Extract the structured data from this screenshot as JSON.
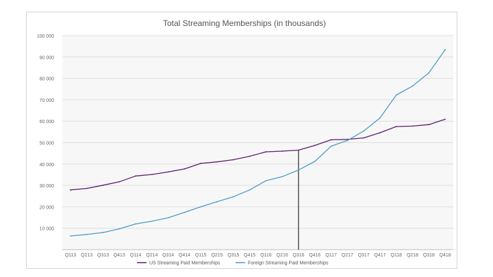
{
  "chart_data": {
    "type": "line",
    "title": "Total Streaming Memberships (in thousands)",
    "xlabel": "",
    "ylabel": "",
    "ylim": [
      0,
      100000
    ],
    "yticks": [
      10000,
      20000,
      30000,
      40000,
      50000,
      60000,
      70000,
      80000,
      90000,
      100000
    ],
    "ytick_labels": [
      "10 000",
      "20 000",
      "30 000",
      "40 000",
      "50 000",
      "60 000",
      "70 000",
      "80 000",
      "90 000",
      "100 000"
    ],
    "categories": [
      "Q113",
      "Q213",
      "Q313",
      "Q413",
      "Q114",
      "Q214",
      "Q314",
      "Q414",
      "Q115",
      "Q215",
      "Q315",
      "Q415",
      "Q116",
      "Q216",
      "Q316",
      "Q416",
      "Q117",
      "Q217",
      "Q317",
      "Q417",
      "Q118",
      "Q218",
      "Q318",
      "Q418"
    ],
    "series": [
      {
        "name": "US Streaming Paid Memberships",
        "color": "#5b1e6e",
        "values": [
          27900,
          28600,
          30100,
          31700,
          34400,
          35100,
          36300,
          37700,
          40300,
          41000,
          42000,
          43600,
          45700,
          46000,
          46500,
          48700,
          51300,
          51500,
          52200,
          54600,
          57500,
          57700,
          58400,
          60900
        ]
      },
      {
        "name": "Foreign Streaming Paid Memberships",
        "color": "#4a9cc4",
        "values": [
          6400,
          7100,
          8000,
          9700,
          12000,
          13300,
          14900,
          17400,
          20000,
          22400,
          24700,
          27900,
          32200,
          34100,
          37200,
          41200,
          48300,
          51000,
          55400,
          61500,
          72200,
          76400,
          82600,
          93400
        ]
      }
    ],
    "marker_line_category": "Q316",
    "legend_position": "bottom",
    "grid": true
  }
}
